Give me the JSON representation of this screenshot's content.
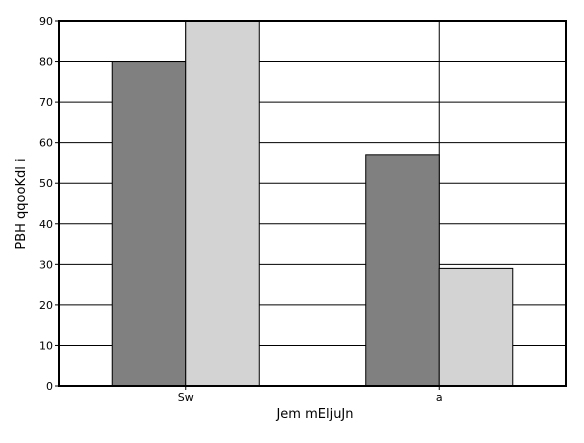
{
  "chart_data": {
    "type": "bar",
    "title": "",
    "xlabel": "Jem mEljuJn",
    "ylabel": "PBH qqooKdl i",
    "categories": [
      "Sw",
      "a"
    ],
    "series": [
      {
        "values": [
          80,
          57
        ],
        "color": "#808080"
      },
      {
        "values": [
          90,
          29
        ],
        "color": "#d3d3d3"
      }
    ],
    "ylim": [
      0,
      90
    ],
    "yticks": [
      0,
      10,
      20,
      30,
      40,
      50,
      60,
      70,
      80,
      90
    ],
    "grid": "horizontal",
    "legend": "none"
  }
}
